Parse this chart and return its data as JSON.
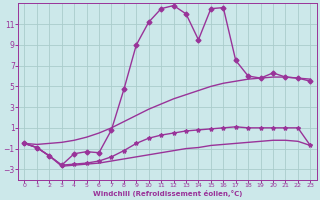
{
  "xlabel": "Windchill (Refroidissement éolien,°C)",
  "bg_color": "#cce8ea",
  "grid_color": "#aacccc",
  "line_color": "#993399",
  "xlim": [
    -0.5,
    23.5
  ],
  "ylim": [
    -4,
    13
  ],
  "yticks": [
    -3,
    -1,
    1,
    3,
    5,
    7,
    9,
    11
  ],
  "xticks": [
    0,
    1,
    2,
    3,
    4,
    5,
    6,
    7,
    8,
    9,
    10,
    11,
    12,
    13,
    14,
    15,
    16,
    17,
    18,
    19,
    20,
    21,
    22,
    23
  ],
  "series": [
    {
      "x": [
        0,
        1,
        2,
        3,
        4,
        5,
        6,
        7,
        8,
        9,
        10,
        11,
        12,
        13,
        14,
        15,
        16,
        17,
        18,
        19,
        20,
        21,
        22,
        23
      ],
      "y": [
        -0.5,
        -0.9,
        -1.7,
        -2.6,
        -1.5,
        -1.3,
        -1.4,
        0.8,
        4.7,
        9.0,
        11.2,
        12.5,
        12.8,
        12.0,
        9.5,
        12.5,
        12.6,
        7.5,
        6.0,
        5.8,
        6.3,
        5.9,
        5.8,
        5.5
      ],
      "marker": "D",
      "markersize": 2.5,
      "linewidth": 1.0
    },
    {
      "x": [
        0,
        1,
        2,
        3,
        4,
        5,
        6,
        7,
        8,
        9,
        10,
        11,
        12,
        13,
        14,
        15,
        16,
        17,
        18,
        19,
        20,
        21,
        22,
        23
      ],
      "y": [
        -0.5,
        -0.6,
        -0.5,
        -0.4,
        -0.2,
        0.1,
        0.5,
        1.0,
        1.6,
        2.2,
        2.8,
        3.3,
        3.8,
        4.2,
        4.6,
        5.0,
        5.3,
        5.5,
        5.7,
        5.8,
        5.9,
        5.9,
        5.8,
        5.7
      ],
      "marker": null,
      "markersize": 0,
      "linewidth": 1.0
    },
    {
      "x": [
        0,
        1,
        2,
        3,
        4,
        5,
        6,
        7,
        8,
        9,
        10,
        11,
        12,
        13,
        14,
        15,
        16,
        17,
        18,
        19,
        20,
        21,
        22,
        23
      ],
      "y": [
        -0.5,
        -0.9,
        -1.7,
        -2.6,
        -2.5,
        -2.4,
        -2.2,
        -1.8,
        -1.2,
        -0.5,
        0.0,
        0.3,
        0.5,
        0.7,
        0.8,
        0.9,
        1.0,
        1.1,
        1.0,
        1.0,
        1.0,
        1.0,
        1.0,
        -0.7
      ],
      "marker": "*",
      "markersize": 3,
      "linewidth": 1.0
    },
    {
      "x": [
        0,
        1,
        2,
        3,
        4,
        5,
        6,
        7,
        8,
        9,
        10,
        11,
        12,
        13,
        14,
        15,
        16,
        17,
        18,
        19,
        20,
        21,
        22,
        23
      ],
      "y": [
        -0.5,
        -0.9,
        -1.7,
        -2.7,
        -2.6,
        -2.5,
        -2.4,
        -2.2,
        -2.0,
        -1.8,
        -1.6,
        -1.4,
        -1.2,
        -1.0,
        -0.9,
        -0.7,
        -0.6,
        -0.5,
        -0.4,
        -0.3,
        -0.2,
        -0.2,
        -0.3,
        -0.7
      ],
      "marker": null,
      "markersize": 0,
      "linewidth": 1.0
    }
  ]
}
